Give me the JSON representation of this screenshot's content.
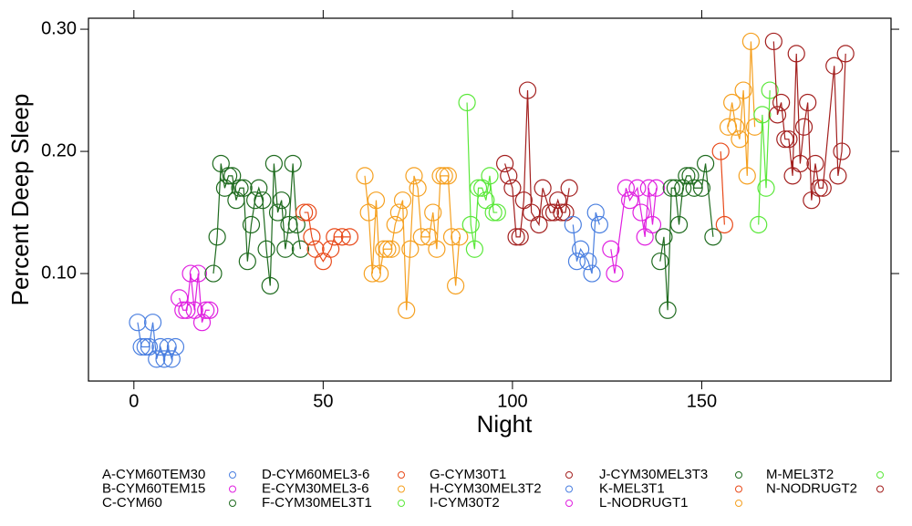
{
  "chart_data": {
    "type": "line",
    "x_label": "Night",
    "y_label": "Percent Deep Sleep",
    "xlim": [
      -12,
      200
    ],
    "ylim": [
      0.012,
      0.309
    ],
    "xticks": [
      0,
      50,
      100,
      150
    ],
    "yticks": [
      {
        "value": 0.1,
        "label": "0.10"
      },
      {
        "value": 0.2,
        "label": "0.20"
      },
      {
        "value": 0.3,
        "label": "0.30"
      }
    ],
    "series": [
      {
        "name": "A-CYM60TEM30",
        "color": "#4a7fe0",
        "x": [
          1,
          2,
          3,
          4,
          5,
          6,
          7,
          8,
          9,
          10,
          11
        ],
        "values": [
          0.06,
          0.04,
          0.04,
          0.04,
          0.06,
          0.03,
          0.04,
          0.03,
          0.04,
          0.03,
          0.04
        ]
      },
      {
        "name": "B-CYM60TEM15",
        "color": "#e020e0",
        "x": [
          12,
          13,
          14,
          15,
          16,
          17,
          18,
          19,
          20
        ],
        "values": [
          0.08,
          0.07,
          0.07,
          0.1,
          0.07,
          0.1,
          0.06,
          0.07,
          0.07
        ]
      },
      {
        "name": "C-CYM60",
        "color": "#1f6b1f",
        "x": [
          21,
          22,
          23,
          24,
          25,
          26,
          27,
          28,
          29,
          30,
          31,
          32,
          33,
          34,
          35,
          36,
          37,
          38,
          39,
          40,
          41,
          42,
          43,
          44
        ],
        "values": [
          0.1,
          0.13,
          0.19,
          0.17,
          0.18,
          0.18,
          0.16,
          0.17,
          0.17,
          0.11,
          0.14,
          0.16,
          0.17,
          0.16,
          0.12,
          0.09,
          0.19,
          0.15,
          0.16,
          0.12,
          0.14,
          0.19,
          0.14,
          0.12
        ]
      },
      {
        "name": "D-CYM60MEL3-6",
        "color": "#e84a1a",
        "x": [
          45,
          46,
          47,
          48,
          50,
          52,
          53,
          55,
          57
        ],
        "values": [
          0.15,
          0.15,
          0.13,
          0.12,
          0.11,
          0.12,
          0.13,
          0.13,
          0.13
        ]
      },
      {
        "name": "E-CYM30MEL3-6",
        "color": "#f5a020",
        "x": [
          61,
          62,
          63,
          64,
          65,
          66,
          67,
          68,
          69,
          70,
          71,
          72,
          73,
          74,
          75,
          76,
          78,
          79,
          80,
          81,
          82,
          83,
          84,
          85,
          86
        ],
        "values": [
          0.18,
          0.15,
          0.1,
          0.16,
          0.1,
          0.12,
          0.12,
          0.12,
          0.14,
          0.15,
          0.16,
          0.07,
          0.12,
          0.18,
          0.17,
          0.13,
          0.13,
          0.15,
          0.12,
          0.18,
          0.18,
          0.18,
          0.13,
          0.09,
          0.13
        ]
      },
      {
        "name": "F-CYM30MEL3T1",
        "color": "#5ae83a",
        "x": [
          88,
          89,
          90,
          91,
          92,
          93,
          94,
          95,
          96
        ],
        "values": [
          0.24,
          0.14,
          0.12,
          0.17,
          0.17,
          0.16,
          0.18,
          0.15,
          0.15
        ]
      },
      {
        "name": "G-CYM30T1",
        "color": "#a3201f",
        "x": [
          98,
          99,
          100,
          101,
          102,
          103,
          104,
          105,
          107,
          108,
          110,
          111,
          112,
          113,
          114,
          115
        ],
        "values": [
          0.19,
          0.18,
          0.17,
          0.13,
          0.13,
          0.16,
          0.25,
          0.15,
          0.14,
          0.17,
          0.15,
          0.15,
          0.16,
          0.15,
          0.15,
          0.17
        ]
      },
      {
        "name": "H-CYM30MEL3T2",
        "color": "#4a7fe0",
        "x": [
          116,
          117,
          118,
          120,
          121,
          122,
          123
        ],
        "values": [
          0.14,
          0.11,
          0.12,
          0.11,
          0.1,
          0.15,
          0.14
        ]
      },
      {
        "name": "I-CYM30T2",
        "color": "#e020e0",
        "x": [
          126,
          127,
          130,
          131,
          133,
          134,
          135,
          136,
          137,
          138
        ],
        "values": [
          0.12,
          0.1,
          0.17,
          0.16,
          0.17,
          0.15,
          0.13,
          0.17,
          0.14,
          0.17
        ]
      },
      {
        "name": "J-CYM30MEL3T3",
        "color": "#1f6b1f",
        "x": [
          139,
          140,
          141,
          142,
          143,
          144,
          145,
          146,
          147,
          148,
          150,
          151,
          153
        ],
        "values": [
          0.11,
          0.13,
          0.07,
          0.17,
          0.17,
          0.14,
          0.17,
          0.18,
          0.18,
          0.17,
          0.17,
          0.19,
          0.13
        ]
      },
      {
        "name": "K-MEL3T1",
        "color": "#e84a1a",
        "x": [
          155,
          156
        ],
        "values": [
          0.2,
          0.14
        ]
      },
      {
        "name": "L-NODRUGT1",
        "color": "#f5a020",
        "x": [
          157,
          158,
          159,
          160,
          161,
          162,
          163,
          164
        ],
        "values": [
          0.22,
          0.24,
          0.22,
          0.21,
          0.25,
          0.18,
          0.29,
          0.22
        ]
      },
      {
        "name": "M-MEL3T2",
        "color": "#5ae83a",
        "x": [
          165,
          166,
          167,
          168
        ],
        "values": [
          0.14,
          0.23,
          0.17,
          0.25
        ]
      },
      {
        "name": "N-NODRUGT2",
        "color": "#a3201f",
        "x": [
          169,
          170,
          171,
          172,
          173,
          174,
          175,
          176,
          177,
          178,
          179,
          180,
          181,
          182,
          185,
          186,
          187,
          188
        ],
        "values": [
          0.29,
          0.23,
          0.24,
          0.21,
          0.21,
          0.18,
          0.28,
          0.19,
          0.22,
          0.24,
          0.16,
          0.19,
          0.17,
          0.17,
          0.27,
          0.18,
          0.2,
          0.28
        ]
      }
    ]
  }
}
